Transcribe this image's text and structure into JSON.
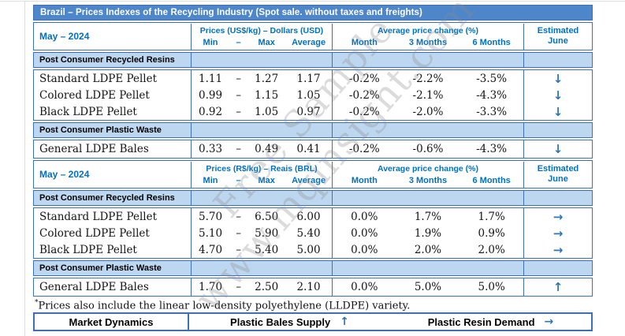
{
  "title": "Brazil – Prices Indexes of the Recycling Industry (Spot sale. without taxes and freights)",
  "period": "May – 2024",
  "dash": "–",
  "cols": {
    "min": "Min",
    "dash": "–",
    "max": "Max",
    "avg": "Average",
    "month": "Month",
    "m3": "3 Months",
    "m6": "6 Months"
  },
  "change_header": "Average price change (%)",
  "estimated": {
    "line1": "Estimated",
    "line2": "June"
  },
  "sections": {
    "resins": "Post Consumer Recycled Resins",
    "waste": "Post Consumer Plastic Waste"
  },
  "usd": {
    "prices_header": "Prices (US$/kg) – Dollars (USD)",
    "rows": [
      {
        "name": "Standard LDPE Pellet",
        "min": "1.11",
        "max": "1.27",
        "avg": "1.17",
        "month": "-0.2%",
        "m3": "-2.2%",
        "m6": "-3.5%",
        "arrow": "↓"
      },
      {
        "name": "Colored LDPE Pellet",
        "min": "0.99",
        "max": "1.15",
        "avg": "1.05",
        "month": "-0.2%",
        "m3": "-2.1%",
        "m6": "-4.3%",
        "arrow": "↓"
      },
      {
        "name": "Black LDPE Pellet",
        "min": "0.92",
        "max": "1.05",
        "avg": "0.97",
        "month": "-0.2%",
        "m3": "-2.0%",
        "m6": "-3.3%",
        "arrow": "↓"
      }
    ],
    "waste_row": {
      "name": "General LDPE Bales",
      "min": "0.33",
      "max": "0.49",
      "avg": "0.41",
      "month": "-0.2%",
      "m3": "-0.6%",
      "m6": "-4.3%",
      "arrow": "↓"
    }
  },
  "brl": {
    "prices_header": "Prices (R$/kg) – Reais (BRL)",
    "rows": [
      {
        "name": "Standard LDPE Pellet",
        "min": "5.70",
        "max": "6.50",
        "avg": "6.00",
        "month": "0.0%",
        "m3": "1.7%",
        "m6": "1.7%",
        "arrow": "→"
      },
      {
        "name": "Colored LDPE Pellet",
        "min": "5.10",
        "max": "5.90",
        "avg": "5.40",
        "month": "0.0%",
        "m3": "1.9%",
        "m6": "0.9%",
        "arrow": "→"
      },
      {
        "name": "Black LDPE Pellet",
        "min": "4.70",
        "max": "5.40",
        "avg": "5.00",
        "month": "0.0%",
        "m3": "2.0%",
        "m6": "2.0%",
        "arrow": "→"
      }
    ],
    "waste_row": {
      "name": "General LDPE Bales",
      "min": "1.70",
      "max": "2.50",
      "avg": "2.10",
      "month": "0.0%",
      "m3": "5.0%",
      "m6": "5.0%",
      "arrow": "↑"
    }
  },
  "footnote": {
    "marker": "*",
    "text": "Prices also include the linear low-density polyethylene (LLDPE) variety."
  },
  "bottom": {
    "market": "Market Dynamics",
    "supply": "Plastic Bales Supply",
    "supply_arrow": "↑",
    "demand": "Plastic Resin Demand",
    "demand_arrow": "→"
  },
  "watermark": {
    "line1": "Free Sample",
    "line2": "www.mqinsight.com"
  },
  "colors": {
    "title_bar_blue": "#4e86ca",
    "border_blue": "#3e70ba",
    "section_light_blue": "#bed7f0",
    "header_text_blue": "#0070c0",
    "arrow_blue": "#2e75b6"
  }
}
